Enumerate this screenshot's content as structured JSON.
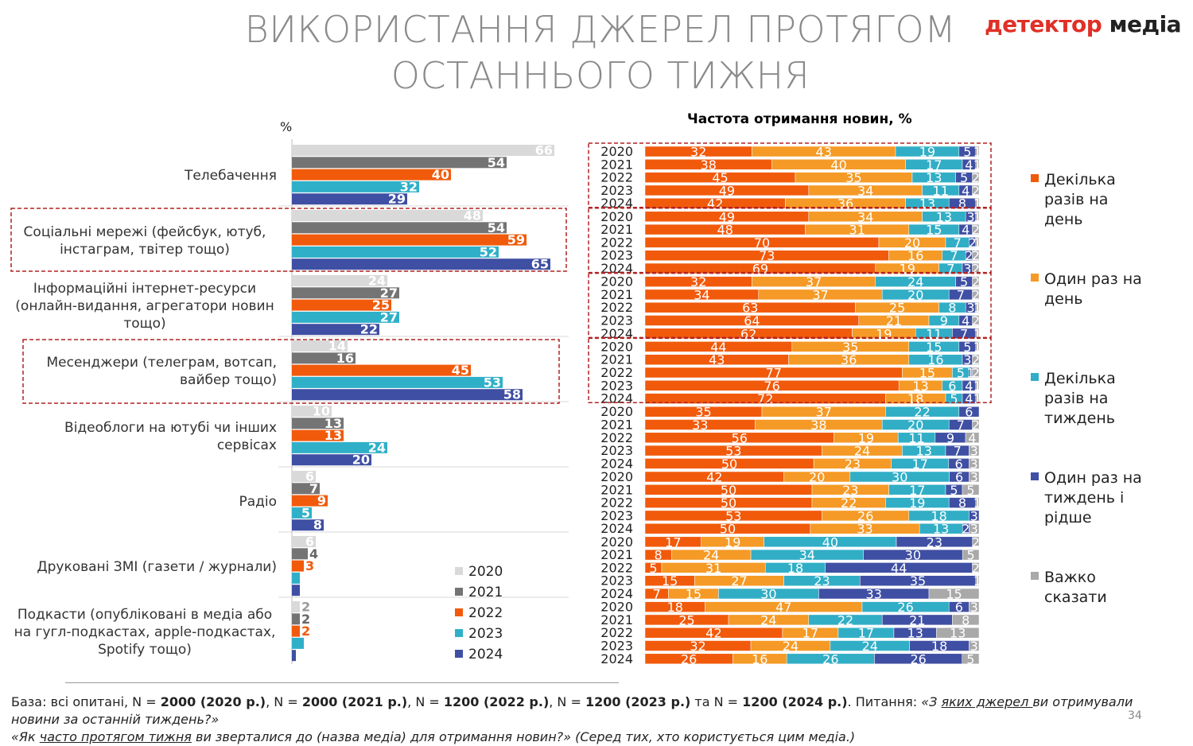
{
  "title": "ВИКОРИСТАННЯ ДЖЕРЕЛ ПРОТЯГОМ ОСТАННЬОГО ТИЖНЯ",
  "logo": {
    "part1": "детектор",
    "part2": " медіа"
  },
  "colors": {
    "y2020": "#d9d9d9",
    "y2021": "#747474",
    "y2022": "#f15a0b",
    "y2023": "#30b0c8",
    "y2024": "#3f4fa3",
    "freq1": "#f15a0b",
    "freq2": "#f59a26",
    "freq3": "#31aec6",
    "freq4": "#3f4fa3",
    "freq5": "#a9a9a9",
    "highlight": "#b22222"
  },
  "left_unit": "%",
  "right_title": "Частота отримання новин, %",
  "page_number": "34",
  "footer": {
    "base_label": "База: всі опитані, N = ",
    "n1": "2000 (2020 р.)",
    "sep1": ", N = ",
    "n2": "2000 (2021 р.)",
    "sep2": ", N = ",
    "n3": "1200 (2022 р.)",
    "sep3": ", N = ",
    "n4": "1200 (2023 р.)",
    "sep4": " та N = ",
    "n5": "1200 (2024 р.)",
    "q_label": ". Питання: ",
    "q1_a": "«З ",
    "q1_u": "яких джерел ",
    "q1_b": "ви отримували новини за останній тиждень?»",
    "q2_a": "«Як ",
    "q2_u": "часто протягом тижня",
    "q2_b": " ви зверталися до (назва медіа) для отримання новин?» (Серед тих, хто користується цим медіа.)"
  },
  "chart_data": [
    {
      "type": "bar",
      "orientation": "horizontal",
      "unit": "%",
      "categories": [
        "Телебачення",
        "Соціальні мережі (фейсбук, ютуб, інстаграм, твітер тощо)",
        "Інформаційні інтернет-ресурси (онлайн-видання, агрегатори новин тощо)",
        "Месенджери (телеграм, вотсап, вайбер тощо)",
        "Відеоблоги на ютубі  чи інших сервісах",
        "Радіо",
        "Друковані ЗМІ (газети / журнали)",
        "Подкасти (опубліковані в медіа або на гугл-подкастах, apple-подкастах, Spotify тощо)"
      ],
      "category_lines": [
        [
          "Телебачення"
        ],
        [
          "Соціальні мережі (фейсбук, ютуб,",
          "інстаграм, твітер тощо)"
        ],
        [
          "Інформаційні інтернет-ресурси",
          "(онлайн-видання, агрегатори новин",
          "тощо)"
        ],
        [
          "Месенджери (телеграм, вотсап,",
          "вайбер тощо)"
        ],
        [
          "Відеоблоги на ютубі  чи інших",
          "сервісах"
        ],
        [
          "Радіо"
        ],
        [
          "Друковані ЗМІ (газети / журнали)"
        ],
        [
          "Подкасти (опубліковані в медіа або",
          "на гугл-подкастах, apple-подкастах,",
          "Spotify тощо)"
        ]
      ],
      "series": [
        {
          "name": "2020",
          "values": [
            66,
            48,
            24,
            14,
            10,
            6,
            6,
            2
          ]
        },
        {
          "name": "2021",
          "values": [
            54,
            54,
            27,
            16,
            13,
            7,
            4,
            2
          ]
        },
        {
          "name": "2022",
          "values": [
            40,
            59,
            25,
            45,
            13,
            9,
            3,
            2
          ]
        },
        {
          "name": "2023",
          "values": [
            32,
            52,
            27,
            53,
            24,
            5,
            2,
            3
          ]
        },
        {
          "name": "2024",
          "values": [
            29,
            65,
            22,
            58,
            20,
            8,
            2,
            1
          ]
        }
      ],
      "labels": [
        [
          "66",
          "54",
          "40",
          "32",
          "29"
        ],
        [
          "48",
          "54",
          "59",
          "52",
          "65"
        ],
        [
          "24",
          "27",
          "25",
          "27",
          "22"
        ],
        [
          "14",
          "16",
          "45",
          "53",
          "58"
        ],
        [
          "10",
          "13",
          "13",
          "24",
          "20"
        ],
        [
          "6",
          "7",
          "9",
          "5",
          "8"
        ],
        [
          "6",
          "4",
          "3",
          "",
          ""
        ],
        [
          "2",
          "2",
          "2",
          "",
          ""
        ]
      ],
      "highlighted_categories": [
        1,
        3
      ],
      "legend": [
        "2020",
        "2021",
        "2022",
        "2023",
        "2024"
      ]
    },
    {
      "type": "bar",
      "orientation": "horizontal",
      "stacked": true,
      "title": "Частота отримання новин, %",
      "years": [
        "2020",
        "2021",
        "2022",
        "2023",
        "2024"
      ],
      "series_names": [
        "Декілька разів на день",
        "Один раз на день",
        "Декілька разів на тиждень",
        "Один раз на тиждень і рідше",
        "Важко сказати"
      ],
      "legend_lines": [
        [
          "Декілька",
          "разів на",
          "день"
        ],
        [
          "Один раз на",
          "день"
        ],
        [
          "Декілька",
          "разів на",
          "тиждень"
        ],
        [
          "Один раз на",
          "тиждень і",
          "рідше"
        ],
        [
          "Важко",
          "сказати"
        ]
      ],
      "groups": [
        [
          [
            32,
            43,
            19,
            5,
            1
          ],
          [
            38,
            40,
            17,
            4,
            1
          ],
          [
            45,
            35,
            13,
            5,
            2
          ],
          [
            49,
            34,
            11,
            4,
            2
          ],
          [
            42,
            36,
            13,
            8,
            1
          ]
        ],
        [
          [
            49,
            34,
            13,
            3,
            1
          ],
          [
            48,
            31,
            15,
            4,
            2
          ],
          [
            70,
            20,
            7,
            2,
            1
          ],
          [
            73,
            16,
            7,
            2,
            2
          ],
          [
            69,
            19,
            7,
            3,
            2
          ]
        ],
        [
          [
            32,
            37,
            24,
            5,
            2
          ],
          [
            34,
            37,
            20,
            7,
            2
          ],
          [
            63,
            25,
            8,
            3,
            1
          ],
          [
            64,
            21,
            9,
            4,
            2
          ],
          [
            62,
            19,
            11,
            7,
            1
          ]
        ],
        [
          [
            44,
            35,
            15,
            5,
            1
          ],
          [
            43,
            36,
            16,
            3,
            2
          ],
          [
            77,
            15,
            5,
            1,
            2
          ],
          [
            76,
            13,
            6,
            4,
            1
          ],
          [
            72,
            18,
            5,
            4,
            1
          ]
        ],
        [
          [
            35,
            37,
            22,
            6,
            0
          ],
          [
            33,
            38,
            20,
            7,
            2
          ],
          [
            56,
            19,
            11,
            9,
            4
          ],
          [
            53,
            24,
            13,
            7,
            3
          ],
          [
            50,
            23,
            17,
            6,
            3
          ]
        ],
        [
          [
            42,
            20,
            30,
            6,
            3
          ],
          [
            50,
            23,
            17,
            5,
            5
          ],
          [
            50,
            22,
            19,
            8,
            1
          ],
          [
            53,
            26,
            18,
            3,
            0
          ],
          [
            50,
            33,
            13,
            2,
            3
          ]
        ],
        [
          [
            17,
            19,
            40,
            23,
            2
          ],
          [
            8,
            24,
            34,
            30,
            5
          ],
          [
            5,
            31,
            18,
            44,
            2
          ],
          [
            15,
            27,
            23,
            35,
            1
          ],
          [
            7,
            15,
            30,
            33,
            15
          ]
        ],
        [
          [
            18,
            47,
            26,
            6,
            3
          ],
          [
            25,
            24,
            22,
            21,
            8
          ],
          [
            42,
            17,
            17,
            13,
            13
          ],
          [
            32,
            24,
            24,
            18,
            3
          ],
          [
            26,
            16,
            26,
            26,
            5
          ]
        ]
      ],
      "highlighted_groups": [
        0,
        1,
        2,
        3
      ]
    }
  ]
}
